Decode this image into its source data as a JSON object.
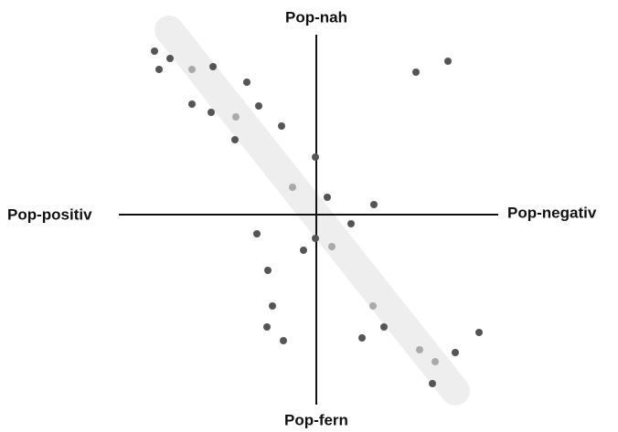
{
  "axes": {
    "top": "Pop-nah",
    "bottom": "Pop-fern",
    "left": "Pop-positiv",
    "right": "Pop-negativ"
  }
}
